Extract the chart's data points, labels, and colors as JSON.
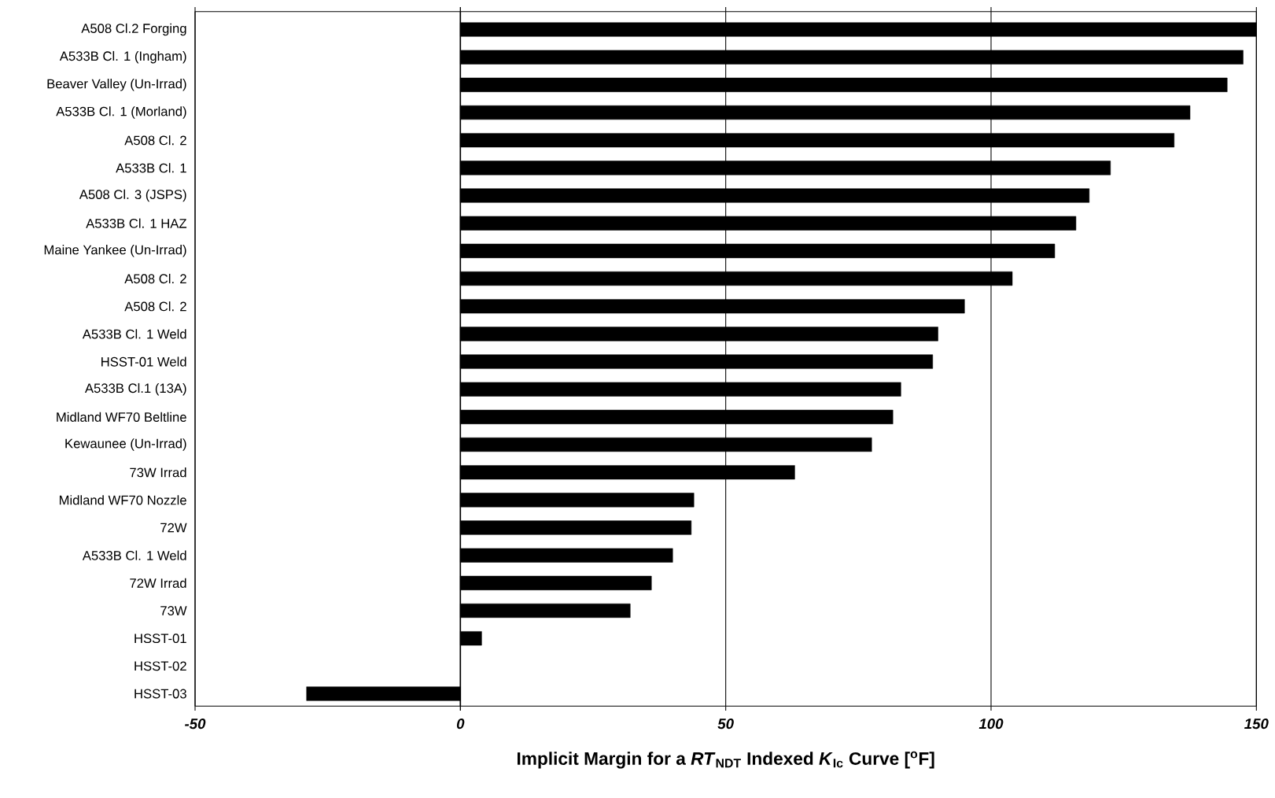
{
  "chart_data": {
    "type": "bar",
    "orientation": "horizontal",
    "xlabel": "Implicit Margin for a *RT*$_{NDT}$ Indexed *K*$_{Ic}$ Curve  [$^{o}$F]",
    "categories": [
      "A508 Cl.2 Forging",
      "A533B Cl. 1 (Ingham)",
      "Beaver Valley (Un-Irrad)",
      "A533B Cl. 1 (Morland)",
      "A508 Cl. 2",
      "A533B Cl. 1",
      "A508 Cl. 3 (JSPS)",
      "A533B Cl. 1 HAZ",
      "Maine Yankee (Un-Irrad)",
      "A508 Cl. 2",
      "A508 Cl. 2",
      "A533B Cl. 1 Weld",
      "HSST-01 Weld",
      "A533B Cl.1 (13A)",
      "Midland WF70 Beltline",
      "Kewaunee (Un-Irrad)",
      "73W Irrad",
      "Midland WF70 Nozzle",
      "72W",
      "A533B Cl. 1 Weld",
      "72W Irrad",
      "73W",
      "HSST-01",
      "HSST-02",
      "HSST-03"
    ],
    "values": [
      150,
      147.5,
      144.5,
      137.5,
      134.5,
      122.5,
      118.5,
      116,
      112,
      104,
      95,
      90,
      89,
      83,
      81.5,
      77.5,
      63,
      44,
      43.5,
      40,
      36,
      32,
      4,
      null,
      -29
    ],
    "color": "#000000",
    "xlim": [
      -50,
      150
    ],
    "xticks": [
      -50,
      0,
      50,
      100,
      150
    ],
    "grid": "x"
  }
}
